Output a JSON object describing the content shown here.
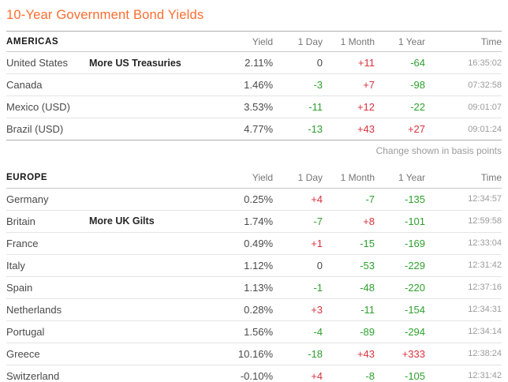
{
  "page": {
    "title": "10-Year Government Bond Yields",
    "note": "Change shown in basis points"
  },
  "columns": [
    "Yield",
    "1 Day",
    "1 Month",
    "1 Year",
    "Time"
  ],
  "colors": {
    "accent": "#ff6c2f",
    "positive_change": "#d9333f",
    "negative_change": "#2ea12e",
    "text": "#4a4a4a",
    "muted": "#9b9b9b"
  },
  "sections": [
    {
      "name": "AMERICAS",
      "rows": [
        {
          "country": "United States",
          "link": "More US Treasuries",
          "yield": "2.11%",
          "day": "0",
          "month": "+11",
          "year": "-64",
          "time": "16:35:02"
        },
        {
          "country": "Canada",
          "link": "",
          "yield": "1.46%",
          "day": "-3",
          "month": "+7",
          "year": "-98",
          "time": "07:32:58"
        },
        {
          "country": "Mexico (USD)",
          "link": "",
          "yield": "3.53%",
          "day": "-11",
          "month": "+12",
          "year": "-22",
          "time": "09:01:07"
        },
        {
          "country": "Brazil (USD)",
          "link": "",
          "yield": "4.77%",
          "day": "-13",
          "month": "+43",
          "year": "+27",
          "time": "09:01:24"
        }
      ]
    },
    {
      "name": "EUROPE",
      "rows": [
        {
          "country": "Germany",
          "link": "",
          "yield": "0.25%",
          "day": "+4",
          "month": "-7",
          "year": "-135",
          "time": "12:34:57"
        },
        {
          "country": "Britain",
          "link": "More UK Gilts",
          "yield": "1.74%",
          "day": "-7",
          "month": "+8",
          "year": "-101",
          "time": "12:59:58"
        },
        {
          "country": "France",
          "link": "",
          "yield": "0.49%",
          "day": "+1",
          "month": "-15",
          "year": "-169",
          "time": "12:33:04"
        },
        {
          "country": "Italy",
          "link": "",
          "yield": "1.12%",
          "day": "0",
          "month": "-53",
          "year": "-229",
          "time": "12:31:42"
        },
        {
          "country": "Spain",
          "link": "",
          "yield": "1.13%",
          "day": "-1",
          "month": "-48",
          "year": "-220",
          "time": "12:37:16"
        },
        {
          "country": "Netherlands",
          "link": "",
          "yield": "0.28%",
          "day": "+3",
          "month": "-11",
          "year": "-154",
          "time": "12:34:31"
        },
        {
          "country": "Portugal",
          "link": "",
          "yield": "1.56%",
          "day": "-4",
          "month": "-89",
          "year": "-294",
          "time": "12:34:14"
        },
        {
          "country": "Greece",
          "link": "",
          "yield": "10.16%",
          "day": "-18",
          "month": "+43",
          "year": "+333",
          "time": "12:38:24"
        },
        {
          "country": "Switzerland",
          "link": "",
          "yield": "-0.10%",
          "day": "+4",
          "month": "-8",
          "year": "-105",
          "time": "12:31:42"
        }
      ]
    }
  ]
}
